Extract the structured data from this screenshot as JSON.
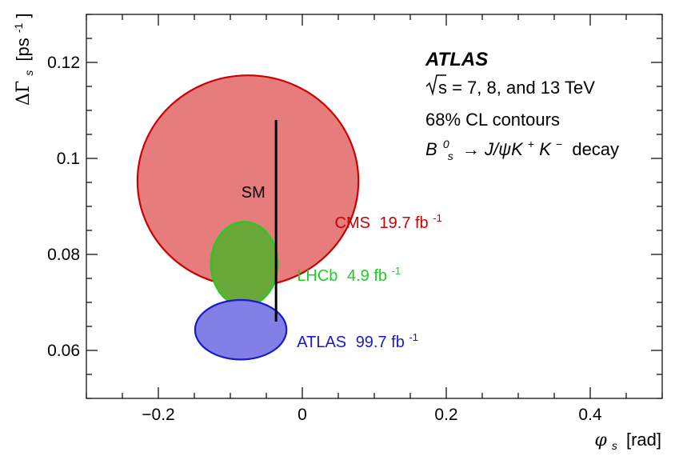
{
  "chart_data": {
    "type": "scatter",
    "subtype": "contour-ellipses",
    "x_axis": {
      "label_symbol": "φ",
      "label_sub": "s",
      "label_unit": "[rad]",
      "lim": [
        -0.3,
        0.5
      ],
      "ticks": [
        -0.2,
        0,
        0.2,
        0.4
      ],
      "tick_labels": [
        "−0.2",
        "0",
        "0.2",
        "0.4"
      ],
      "minor_step": 0.05
    },
    "y_axis": {
      "label_symbol": "ΔΓ",
      "label_sub": "s",
      "label_unit": "[ps",
      "label_sup": "-1",
      "label_close": "]",
      "lim": [
        0.05,
        0.13
      ],
      "ticks": [
        0.06,
        0.08,
        0.1,
        0.12
      ],
      "tick_labels": [
        "0.06",
        "0.08",
        "0.1",
        "0.12"
      ],
      "minor_step": 0.005
    },
    "annotations": {
      "experiment": "ATLAS",
      "energy_prefix": "s = 7, 8, and 13 TeV",
      "contour_level": "68% CL contours",
      "decay_B": "B",
      "decay_B_sup": "0",
      "decay_B_sub": "s",
      "decay_rest": "→ J/ψK",
      "decay_Kplus": "+",
      "decay_K2": "K",
      "decay_Kminus": "−",
      "decay_word": "decay"
    },
    "series": [
      {
        "name": "CMS",
        "lumi": "19.7 fb",
        "lumi_sup": "-1",
        "color": "#cc0000",
        "fill": "#e67c7c",
        "center": [
          -0.0755,
          0.0953
        ],
        "rx": 0.1535,
        "ry": 0.022,
        "label_anchor": [
          0.045,
          0.0855
        ]
      },
      {
        "name": "LHCb",
        "lumi": "4.9 fb",
        "lumi_sup": "-1",
        "color": "#22cc22",
        "fill": "#6aa83a",
        "center": [
          -0.0805,
          0.078
        ],
        "rx": 0.0465,
        "ry": 0.0088,
        "label_anchor": [
          -0.0075,
          0.0745
        ]
      },
      {
        "name": "ATLAS",
        "lumi": "99.7 fb",
        "lumi_sup": "-1",
        "color": "#1a1acc",
        "fill": "#8080e6",
        "center": [
          -0.0855,
          0.0643
        ],
        "rx": 0.0635,
        "ry": 0.0062,
        "label_anchor": [
          -0.0075,
          0.0607
        ]
      }
    ],
    "sm": {
      "label": "SM",
      "x": -0.0365,
      "y_range": [
        0.066,
        0.108
      ],
      "label_at": [
        -0.068,
        0.0918
      ]
    },
    "grid": false
  }
}
